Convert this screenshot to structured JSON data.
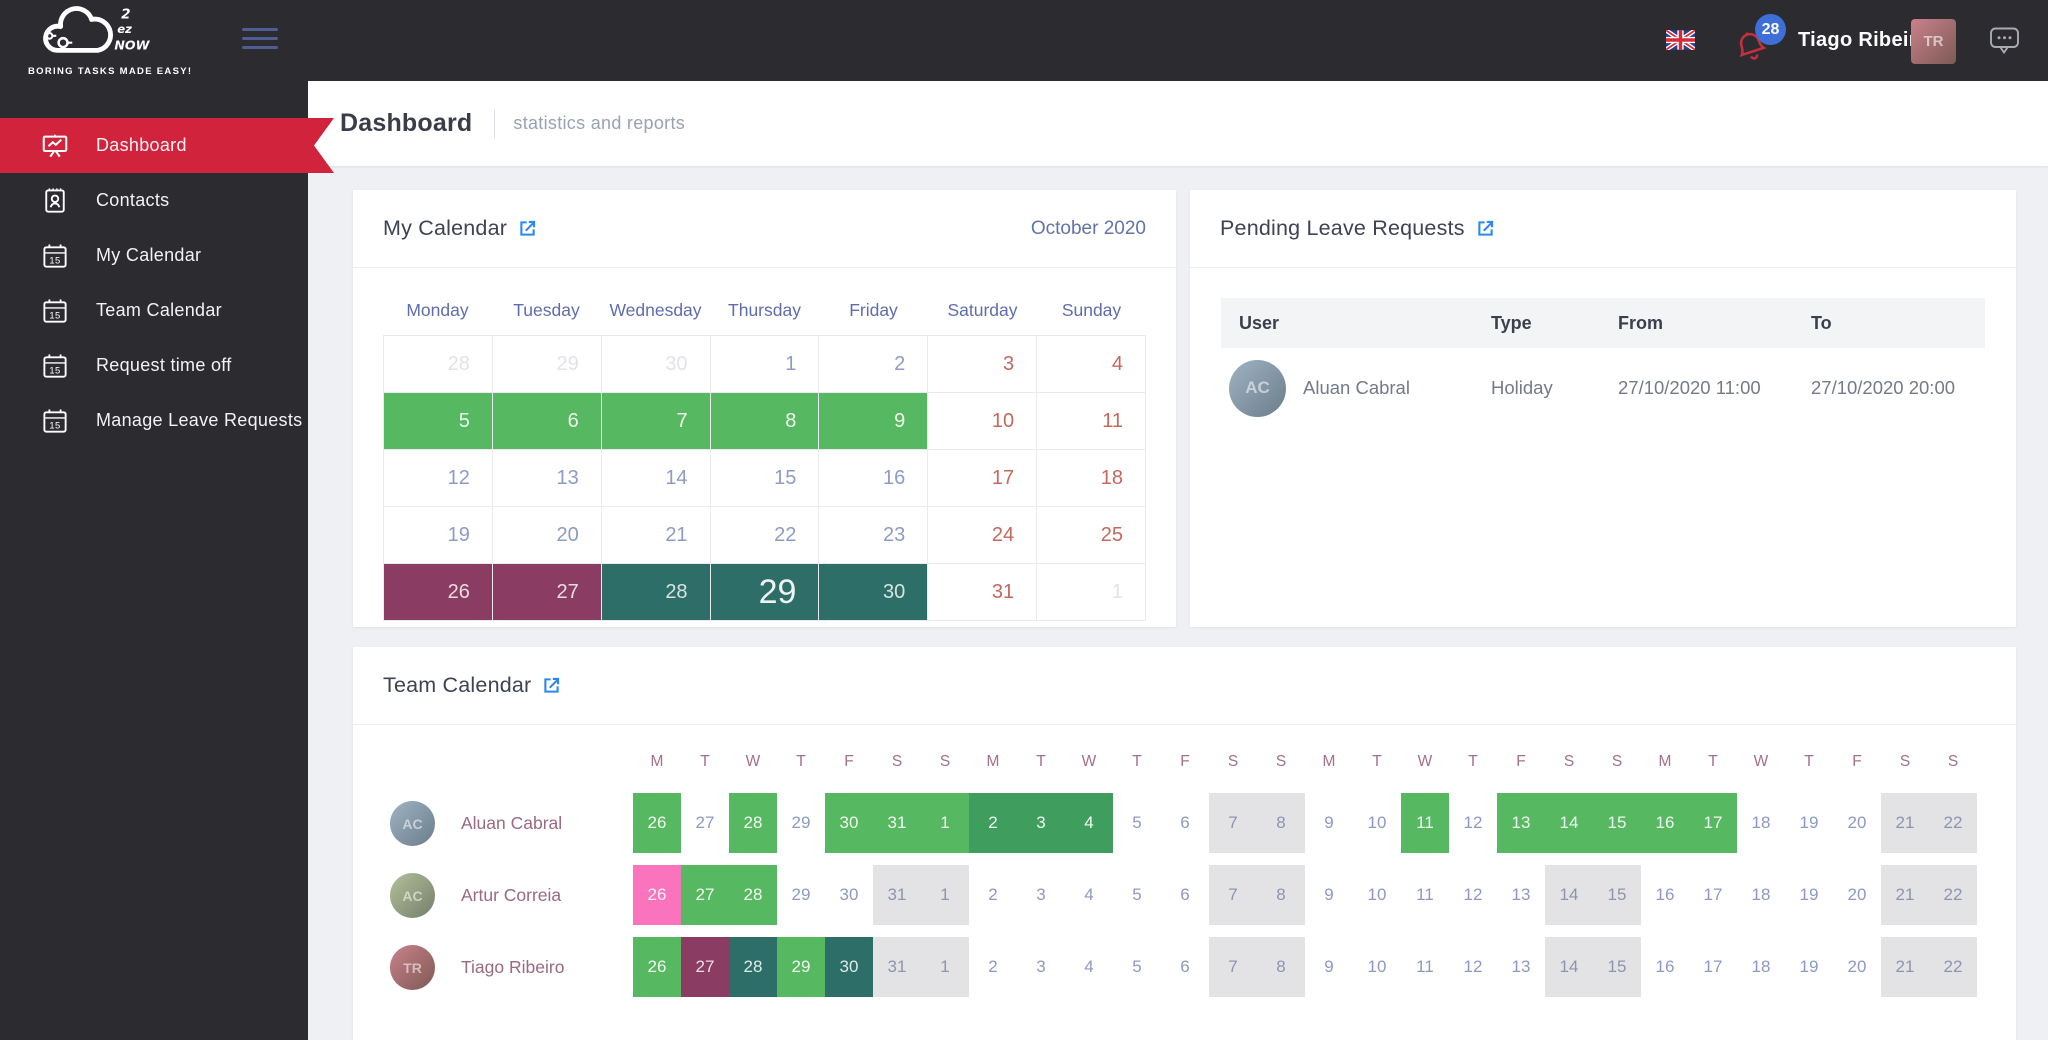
{
  "brand": {
    "tagline": "BORING TASKS MADE EASY!",
    "logo_line1": "2",
    "logo_line2": "ez",
    "logo_line3": "NOW"
  },
  "topbar": {
    "username": "Tiago Ribeiro",
    "notification_count": "28",
    "user_initials": "TR",
    "user_avatar_gradient": [
      "#c9818b",
      "#7e5a55"
    ]
  },
  "sidebar": {
    "items": [
      {
        "label": "Dashboard",
        "icon": "dashboard",
        "active": true
      },
      {
        "label": "Contacts",
        "icon": "contacts",
        "active": false
      },
      {
        "label": "My Calendar",
        "icon": "calendar",
        "active": false
      },
      {
        "label": "Team Calendar",
        "icon": "calendar",
        "active": false
      },
      {
        "label": "Request time off",
        "icon": "calendar",
        "active": false
      },
      {
        "label": "Manage Leave Requests",
        "icon": "calendar",
        "active": false
      }
    ]
  },
  "page_header": {
    "title": "Dashboard",
    "subtitle": "statistics and reports"
  },
  "my_calendar": {
    "title": "My Calendar",
    "month_label": "October 2020",
    "weekdays": [
      "Monday",
      "Tuesday",
      "Wednesday",
      "Thursday",
      "Friday",
      "Saturday",
      "Sunday"
    ],
    "weeks": [
      [
        {
          "d": "28",
          "t": "muted"
        },
        {
          "d": "29",
          "t": "muted"
        },
        {
          "d": "30",
          "t": "muted"
        },
        {
          "d": "1",
          "t": "normal"
        },
        {
          "d": "2",
          "t": "normal"
        },
        {
          "d": "3",
          "t": "weekend"
        },
        {
          "d": "4",
          "t": "weekend"
        }
      ],
      [
        {
          "d": "5",
          "t": "green"
        },
        {
          "d": "6",
          "t": "green"
        },
        {
          "d": "7",
          "t": "green"
        },
        {
          "d": "8",
          "t": "green"
        },
        {
          "d": "9",
          "t": "green"
        },
        {
          "d": "10",
          "t": "weekend"
        },
        {
          "d": "11",
          "t": "weekend"
        }
      ],
      [
        {
          "d": "12",
          "t": "normal"
        },
        {
          "d": "13",
          "t": "normal"
        },
        {
          "d": "14",
          "t": "normal"
        },
        {
          "d": "15",
          "t": "normal"
        },
        {
          "d": "16",
          "t": "normal"
        },
        {
          "d": "17",
          "t": "weekend"
        },
        {
          "d": "18",
          "t": "weekend"
        }
      ],
      [
        {
          "d": "19",
          "t": "normal"
        },
        {
          "d": "20",
          "t": "normal"
        },
        {
          "d": "21",
          "t": "normal"
        },
        {
          "d": "22",
          "t": "normal"
        },
        {
          "d": "23",
          "t": "normal"
        },
        {
          "d": "24",
          "t": "weekend"
        },
        {
          "d": "25",
          "t": "weekend"
        }
      ],
      [
        {
          "d": "26",
          "t": "purple"
        },
        {
          "d": "27",
          "t": "purple"
        },
        {
          "d": "28",
          "t": "teal"
        },
        {
          "d": "29",
          "t": "teal",
          "today": true
        },
        {
          "d": "30",
          "t": "teal"
        },
        {
          "d": "31",
          "t": "weekend"
        },
        {
          "d": "1",
          "t": "muted"
        }
      ]
    ]
  },
  "pending_leave_requests": {
    "title": "Pending Leave Requests",
    "columns": [
      "User",
      "Type",
      "From",
      "To"
    ],
    "rows": [
      {
        "user": "Aluan Cabral",
        "initials": "AC",
        "avatar_gradient": [
          "#9fb3c4",
          "#6b7d8a"
        ],
        "type": "Holiday",
        "from": "27/10/2020 11:00",
        "to": "27/10/2020 20:00"
      }
    ]
  },
  "team_calendar": {
    "title": "Team Calendar",
    "day_letters": [
      "M",
      "T",
      "W",
      "T",
      "F",
      "S",
      "S",
      "M",
      "T",
      "W",
      "T",
      "F",
      "S",
      "S",
      "M",
      "T",
      "W",
      "T",
      "F",
      "S",
      "S",
      "M",
      "T",
      "W",
      "T",
      "F",
      "S",
      "S"
    ],
    "members": [
      {
        "name": "Aluan Cabral",
        "initials": "AC",
        "avatar_gradient": [
          "#9fb3c4",
          "#6b7d8a"
        ],
        "days": [
          {
            "d": "26",
            "c": "green"
          },
          {
            "d": "27"
          },
          {
            "d": "28",
            "c": "green"
          },
          {
            "d": "29"
          },
          {
            "d": "30",
            "c": "green"
          },
          {
            "d": "31",
            "c": "green"
          },
          {
            "d": "1",
            "c": "green"
          },
          {
            "d": "2",
            "c": "green2"
          },
          {
            "d": "3",
            "c": "green2"
          },
          {
            "d": "4",
            "c": "green2"
          },
          {
            "d": "5"
          },
          {
            "d": "6"
          },
          {
            "d": "7",
            "c": "grey"
          },
          {
            "d": "8",
            "c": "grey"
          },
          {
            "d": "9"
          },
          {
            "d": "10"
          },
          {
            "d": "11",
            "c": "green"
          },
          {
            "d": "12"
          },
          {
            "d": "13",
            "c": "green"
          },
          {
            "d": "14",
            "c": "green"
          },
          {
            "d": "15",
            "c": "green"
          },
          {
            "d": "16",
            "c": "green"
          },
          {
            "d": "17",
            "c": "green"
          },
          {
            "d": "18"
          },
          {
            "d": "19"
          },
          {
            "d": "20"
          },
          {
            "d": "21",
            "c": "grey"
          },
          {
            "d": "22",
            "c": "grey"
          }
        ]
      },
      {
        "name": "Artur Correia",
        "initials": "AC",
        "avatar_gradient": [
          "#b3c09a",
          "#73806a"
        ],
        "days": [
          {
            "d": "26",
            "c": "pink"
          },
          {
            "d": "27",
            "c": "green"
          },
          {
            "d": "28",
            "c": "green"
          },
          {
            "d": "29"
          },
          {
            "d": "30"
          },
          {
            "d": "31",
            "c": "grey"
          },
          {
            "d": "1",
            "c": "grey"
          },
          {
            "d": "2"
          },
          {
            "d": "3"
          },
          {
            "d": "4"
          },
          {
            "d": "5"
          },
          {
            "d": "6"
          },
          {
            "d": "7",
            "c": "grey"
          },
          {
            "d": "8",
            "c": "grey"
          },
          {
            "d": "9"
          },
          {
            "d": "10"
          },
          {
            "d": "11"
          },
          {
            "d": "12"
          },
          {
            "d": "13"
          },
          {
            "d": "14",
            "c": "grey"
          },
          {
            "d": "15",
            "c": "grey"
          },
          {
            "d": "16"
          },
          {
            "d": "17"
          },
          {
            "d": "18"
          },
          {
            "d": "19"
          },
          {
            "d": "20"
          },
          {
            "d": "21",
            "c": "grey"
          },
          {
            "d": "22",
            "c": "grey"
          }
        ]
      },
      {
        "name": "Tiago Ribeiro",
        "initials": "TR",
        "avatar_gradient": [
          "#c9818b",
          "#7e5a55"
        ],
        "days": [
          {
            "d": "26",
            "c": "green"
          },
          {
            "d": "27",
            "c": "purple"
          },
          {
            "d": "28",
            "c": "teal"
          },
          {
            "d": "29",
            "c": "green"
          },
          {
            "d": "30",
            "c": "teal"
          },
          {
            "d": "31",
            "c": "grey"
          },
          {
            "d": "1",
            "c": "grey"
          },
          {
            "d": "2"
          },
          {
            "d": "3"
          },
          {
            "d": "4"
          },
          {
            "d": "5"
          },
          {
            "d": "6"
          },
          {
            "d": "7",
            "c": "grey"
          },
          {
            "d": "8",
            "c": "grey"
          },
          {
            "d": "9"
          },
          {
            "d": "10"
          },
          {
            "d": "11"
          },
          {
            "d": "12"
          },
          {
            "d": "13"
          },
          {
            "d": "14",
            "c": "grey"
          },
          {
            "d": "15",
            "c": "grey"
          },
          {
            "d": "16"
          },
          {
            "d": "17"
          },
          {
            "d": "18"
          },
          {
            "d": "19"
          },
          {
            "d": "20"
          },
          {
            "d": "21",
            "c": "grey"
          },
          {
            "d": "22",
            "c": "grey"
          }
        ]
      }
    ]
  },
  "colors": {
    "accent_red": "#d2233c",
    "green": "#56b961",
    "green_dark": "#3f9e5e",
    "teal": "#2e6e69",
    "purple": "#8a3c62",
    "pink": "#f973bd",
    "weekend_grey": "#e3e3e6",
    "link_blue": "#2d87ee",
    "badge_blue": "#3e6ed8"
  }
}
